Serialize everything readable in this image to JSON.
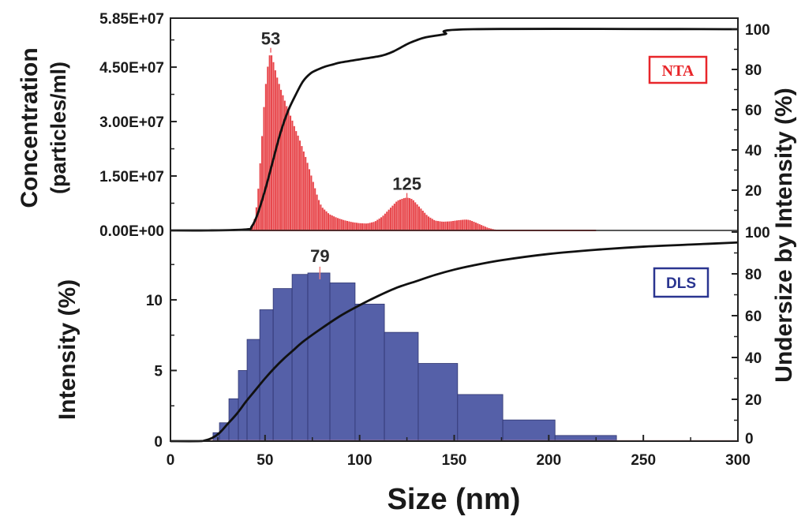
{
  "chart_data": [
    {
      "panel": "top",
      "type": "bar",
      "legend": "NTA",
      "legend_placement": "top-right",
      "ylabel_lines": [
        "Concentration",
        "(particles/ml)"
      ],
      "ylabel_right": "Undersize by Intensity (%)",
      "ylim": [
        0,
        58500000
      ],
      "y_ticks": [
        "0.00E+00",
        "1.50E+07",
        "3.00E+07",
        "4.50E+07",
        "5.85E+07"
      ],
      "y_tick_values": [
        0,
        15000000,
        30000000,
        45000000,
        58500000
      ],
      "y2lim": [
        0,
        100
      ],
      "y2_ticks": [
        20,
        40,
        60,
        80,
        100
      ],
      "xlim": [
        0,
        300
      ],
      "bar_color": "#e8474c",
      "peak_annotations": [
        {
          "label": "53",
          "x": 53,
          "y": 49000000
        },
        {
          "label": "125",
          "x": 125,
          "y": 9000000
        }
      ],
      "distribution": {
        "x": [
          42,
          44,
          46,
          48,
          50,
          52,
          53,
          54,
          56,
          58,
          60,
          62,
          64,
          66,
          68,
          70,
          72,
          74,
          76,
          78,
          80,
          84,
          88,
          92,
          96,
          100,
          104,
          108,
          112,
          116,
          120,
          124,
          126,
          128,
          132,
          136,
          140,
          144,
          148,
          152,
          156,
          158,
          160,
          164,
          168,
          172,
          176,
          180,
          200,
          225
        ],
        "y": [
          0,
          1500000,
          8000000,
          22000000,
          38000000,
          47500000,
          49000000,
          47500000,
          43000000,
          39500000,
          36500000,
          33500000,
          31000000,
          28000000,
          25500000,
          22500000,
          19500000,
          16000000,
          12500000,
          9000000,
          6500000,
          4500000,
          3500000,
          2800000,
          2300000,
          2000000,
          1900000,
          2400000,
          3800000,
          6000000,
          8200000,
          9000000,
          9000000,
          8600000,
          6300000,
          4000000,
          2700000,
          2400000,
          2500000,
          2800000,
          3000000,
          2900000,
          2500000,
          1600000,
          700000,
          200000,
          0,
          0,
          0,
          0
        ]
      },
      "cumulative": {
        "x": [
          0,
          20,
          40,
          43,
          46,
          50,
          54,
          58,
          62,
          66,
          70,
          74,
          78,
          82,
          86,
          90,
          100,
          110,
          114,
          118,
          122,
          126,
          130,
          135,
          145,
          160,
          300
        ],
        "y": [
          0,
          0,
          0.5,
          2,
          8,
          20,
          34,
          48,
          59,
          67,
          74,
          78,
          80,
          81.5,
          82.5,
          83.5,
          85,
          86.5,
          87.5,
          89,
          91,
          93,
          94.5,
          96,
          97.5,
          100,
          100
        ]
      }
    },
    {
      "panel": "bottom",
      "type": "bar",
      "legend": "DLS",
      "legend_placement": "top-right",
      "xlabel": "Size (nm)",
      "ylabel": "Intensity (%)",
      "ylabel_right": "Undersize by Intensity (%)",
      "ylim": [
        0,
        14.8
      ],
      "y_ticks": [
        0,
        5,
        10
      ],
      "y2lim": [
        0,
        100
      ],
      "y2_ticks": [
        0,
        20,
        40,
        60,
        80,
        100
      ],
      "xlim": [
        0,
        300
      ],
      "x_ticks": [
        0,
        50,
        100,
        150,
        200,
        250,
        300
      ],
      "bar_color": "#5560a8",
      "peak_annotations": [
        {
          "label": "79",
          "x": 79,
          "y": 11.9
        }
      ],
      "bins": [
        {
          "x0": 22.5,
          "x1": 25.9,
          "value": 0.6
        },
        {
          "x0": 25.9,
          "x1": 30.9,
          "value": 1.3
        },
        {
          "x0": 30.9,
          "x1": 35.9,
          "value": 3.0
        },
        {
          "x0": 35.9,
          "x1": 40.5,
          "value": 5.0
        },
        {
          "x0": 40.5,
          "x1": 47.2,
          "value": 7.2
        },
        {
          "x0": 47.2,
          "x1": 54.3,
          "value": 9.3
        },
        {
          "x0": 54.3,
          "x1": 64.3,
          "value": 10.8
        },
        {
          "x0": 64.3,
          "x1": 72.6,
          "value": 11.8
        },
        {
          "x0": 72.6,
          "x1": 84.3,
          "value": 11.9
        },
        {
          "x0": 84.3,
          "x1": 97.6,
          "value": 11.2
        },
        {
          "x0": 97.6,
          "x1": 113.1,
          "value": 9.7
        },
        {
          "x0": 113.1,
          "x1": 131.0,
          "value": 7.7
        },
        {
          "x0": 131.0,
          "x1": 151.8,
          "value": 5.5
        },
        {
          "x0": 151.8,
          "x1": 175.7,
          "value": 3.3
        },
        {
          "x0": 175.7,
          "x1": 203.3,
          "value": 1.5
        },
        {
          "x0": 203.3,
          "x1": 235.8,
          "value": 0.4
        }
      ],
      "cumulative": {
        "x": [
          0,
          15,
          18,
          22,
          26,
          30,
          35,
          40,
          45,
          50,
          55,
          60,
          65,
          70,
          80,
          90,
          100,
          110,
          120,
          130,
          140,
          150,
          160,
          175,
          200,
          225,
          250,
          275,
          300
        ],
        "y": [
          0,
          0,
          0.3,
          1.5,
          4,
          8,
          13,
          19,
          24.5,
          30,
          35,
          39.5,
          43.5,
          47.5,
          54,
          60,
          65,
          69.5,
          73.5,
          76.5,
          79.5,
          82,
          84,
          86.5,
          89.5,
          91.5,
          93,
          94,
          95
        ]
      }
    }
  ]
}
